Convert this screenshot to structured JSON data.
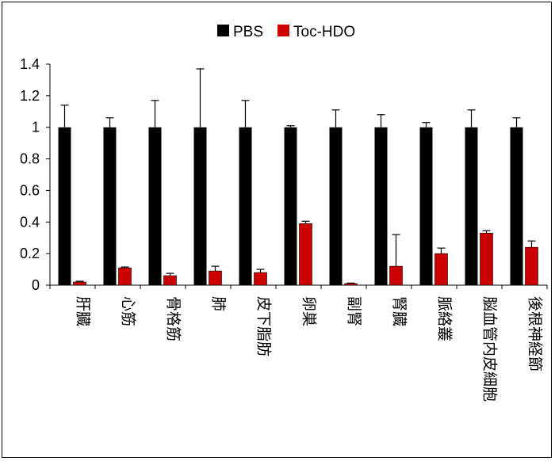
{
  "chart_data": {
    "type": "bar",
    "categories": [
      "肝臓",
      "心筋",
      "骨格筋",
      "肺",
      "皮下脂肪",
      "卵巣",
      "副腎",
      "腎臓",
      "脈絡叢",
      "脳血管内皮細胞",
      "後根神経節"
    ],
    "series": [
      {
        "name": "PBS",
        "color": "#000000",
        "values": [
          1,
          1,
          1,
          1,
          1,
          1,
          1,
          1,
          1,
          1,
          1
        ],
        "errors": [
          0.14,
          0.06,
          0.17,
          0.37,
          0.17,
          0.01,
          0.11,
          0.08,
          0.03,
          0.11,
          0.06
        ]
      },
      {
        "name": "Toc-HDO",
        "color": "#cc0000",
        "values": [
          0.02,
          0.11,
          0.06,
          0.09,
          0.08,
          0.39,
          0.01,
          0.12,
          0.2,
          0.33,
          0.24
        ],
        "errors": [
          0.005,
          0.005,
          0.015,
          0.03,
          0.02,
          0.015,
          0.003,
          0.2,
          0.035,
          0.015,
          0.04
        ]
      }
    ],
    "yticks": [
      "0",
      "0.2",
      "0.4",
      "0.6",
      "0.8",
      "1",
      "1.2",
      "1.4"
    ],
    "ylim": [
      0,
      1.4
    ],
    "legend_position": "top-center",
    "grid": false
  }
}
